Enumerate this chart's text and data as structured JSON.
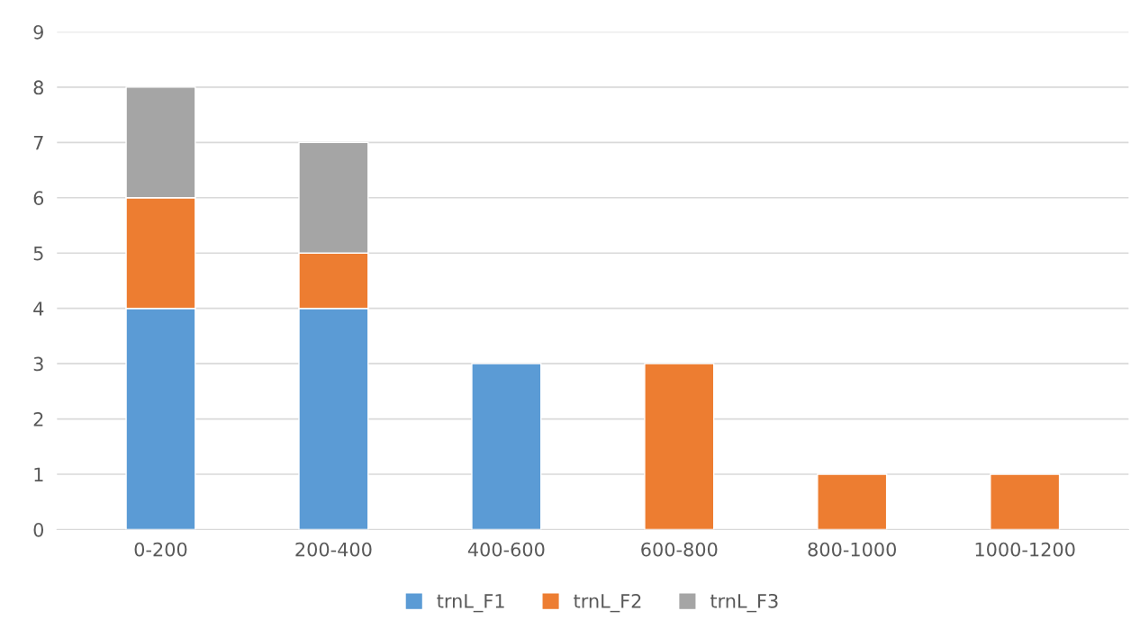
{
  "chart_data": {
    "type": "bar",
    "stacked": true,
    "categories": [
      "0-200",
      "200-400",
      "400-600",
      "600-800",
      "800-1000",
      "1000-1200"
    ],
    "series": [
      {
        "name": "trnL_F1",
        "color": "#5b9bd5",
        "values": [
          4,
          4,
          3,
          null,
          null,
          null
        ]
      },
      {
        "name": "trnL_F2",
        "color": "#ed7d31",
        "values": [
          2,
          1,
          null,
          3,
          1,
          1
        ]
      },
      {
        "name": "trnL_F3",
        "color": "#a5a5a5",
        "values": [
          2,
          2,
          null,
          null,
          null,
          null
        ]
      }
    ],
    "ylim": [
      0,
      9
    ],
    "yticks": [
      0,
      1,
      2,
      3,
      4,
      5,
      6,
      7,
      8,
      9
    ],
    "grid": "y",
    "legend": "bottom"
  }
}
